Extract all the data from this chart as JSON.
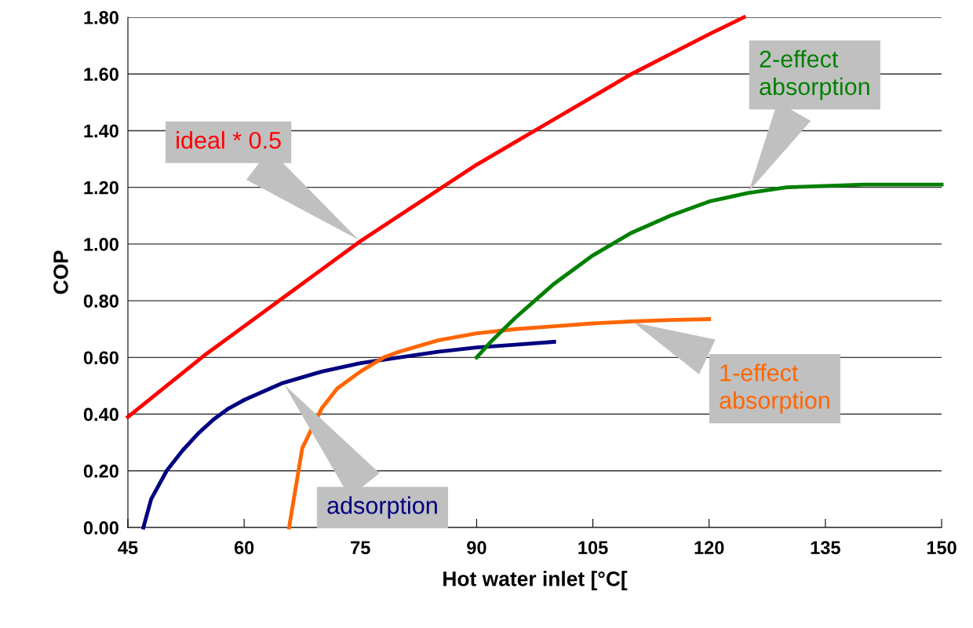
{
  "chart_data": {
    "type": "line",
    "xlabel": "Hot water inlet [°C[",
    "ylabel": "COP",
    "xlim": [
      45,
      150
    ],
    "xticks": [
      45,
      60,
      75,
      90,
      105,
      120,
      135,
      150
    ],
    "ylim": [
      0,
      1.8
    ],
    "yticks": [
      {
        "value": 0,
        "label": "0.00"
      },
      {
        "value": 0.2,
        "label": "0.20"
      },
      {
        "value": 0.4,
        "label": "0.40"
      },
      {
        "value": 0.6,
        "label": "0.60"
      },
      {
        "value": 0.8,
        "label": "0.80"
      },
      {
        "value": 1.0,
        "label": "1.00"
      },
      {
        "value": 1.2,
        "label": "1.20"
      },
      {
        "value": 1.4,
        "label": "1.40"
      },
      {
        "value": 1.6,
        "label": "1.60"
      },
      {
        "value": 1.8,
        "label": "1.80"
      }
    ],
    "grid": "y",
    "legend": false,
    "marker": "none",
    "line_style": "solid",
    "series": [
      {
        "name": "ideal * 0.5",
        "color": "#ff0000",
        "x": [
          45,
          50,
          55,
          60,
          65,
          70,
          75,
          80,
          85,
          90,
          95,
          100,
          105,
          110,
          115,
          120,
          124.5
        ],
        "values": [
          0.39,
          0.5,
          0.61,
          0.71,
          0.81,
          0.91,
          1.01,
          1.1,
          1.19,
          1.28,
          1.36,
          1.44,
          1.52,
          1.6,
          1.67,
          1.74,
          1.8
        ]
      },
      {
        "name": "adsorption",
        "color": "#000080",
        "x": [
          47,
          48,
          50,
          52,
          54,
          56,
          58,
          60,
          65,
          70,
          75,
          80,
          85,
          90,
          95,
          100
        ],
        "values": [
          0,
          0.1,
          0.2,
          0.27,
          0.33,
          0.38,
          0.42,
          0.45,
          0.51,
          0.55,
          0.58,
          0.6,
          0.62,
          0.635,
          0.645,
          0.655
        ]
      },
      {
        "name": "1-effect\nabsorption",
        "color": "#ff6600",
        "x": [
          65.8,
          67.5,
          70,
          72,
          75,
          78,
          80,
          85,
          90,
          95,
          100,
          105,
          110,
          115,
          120
        ],
        "values": [
          0,
          0.28,
          0.42,
          0.49,
          0.55,
          0.6,
          0.62,
          0.66,
          0.685,
          0.7,
          0.71,
          0.72,
          0.727,
          0.732,
          0.735
        ]
      },
      {
        "name": "2-effect\nabsorption",
        "color": "#008000",
        "x": [
          90,
          92,
          95,
          100,
          105,
          110,
          115,
          120,
          125,
          130,
          135,
          140,
          150
        ],
        "values": [
          0.6,
          0.66,
          0.74,
          0.86,
          0.96,
          1.04,
          1.1,
          1.15,
          1.18,
          1.2,
          1.205,
          1.21,
          1.21
        ]
      }
    ]
  }
}
